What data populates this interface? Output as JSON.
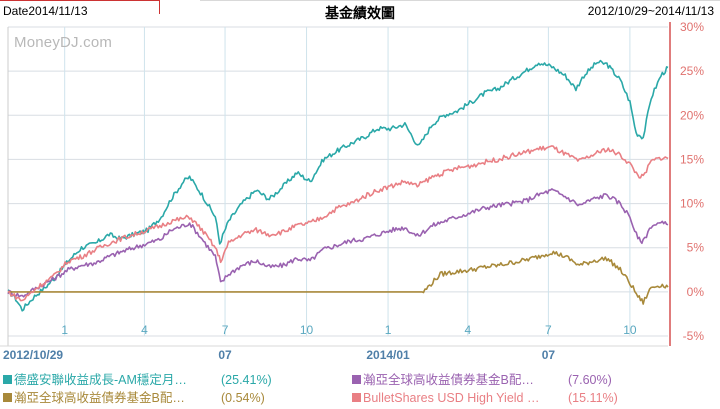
{
  "header": {
    "date_label": "Date2014/11/13",
    "title": "基金績效圖",
    "range": "2012/10/29~2014/11/13"
  },
  "watermark": "MoneyDJ.com",
  "legend": [
    {
      "label": "德盛安聯收益成長-AM穩定月…",
      "value": "(25.41%)",
      "color": "#2aa8a8"
    },
    {
      "label": "瀚亞全球高收益債券基金B配…",
      "value": "(7.60%)",
      "color": "#9a62b0"
    },
    {
      "label": "瀚亞全球高收益債券基金B配…",
      "value": "(0.54%)",
      "color": "#a8893a"
    },
    {
      "label": "BulletShares USD High Yield …",
      "value": "(15.11%)",
      "color": "#e97f84"
    }
  ],
  "chart_data": {
    "type": "line",
    "title": "基金績效圖",
    "xlabel": "",
    "ylabel": "",
    "ylim": [
      -5,
      30
    ],
    "yticks": [
      "-5%",
      "0%",
      "5%",
      "10%",
      "15%",
      "20%",
      "25%",
      "30%"
    ],
    "ytick_values": [
      -5,
      0,
      5,
      10,
      15,
      20,
      25,
      30
    ],
    "xlim": [
      "2012-10-29",
      "2014-11-13"
    ],
    "x_ticks_top": [
      {
        "label": "1",
        "date": "2013-01-01"
      },
      {
        "label": "4",
        "date": "2013-04-01"
      },
      {
        "label": "7",
        "date": "2013-07-01"
      },
      {
        "label": "10",
        "date": "2013-10-01"
      },
      {
        "label": "1",
        "date": "2014-01-01"
      },
      {
        "label": "4",
        "date": "2014-04-01"
      },
      {
        "label": "7",
        "date": "2014-07-01"
      },
      {
        "label": "10",
        "date": "2014-10-01"
      }
    ],
    "x_ticks_bottom": [
      {
        "label": "2012/10/29",
        "date": "2012-10-29"
      },
      {
        "label": "07",
        "date": "2013-07-01"
      },
      {
        "label": "2014/01",
        "date": "2014-01-01"
      },
      {
        "label": "07",
        "date": "2014-07-01"
      }
    ],
    "grid": true,
    "legend_position": "bottom",
    "series": [
      {
        "name": "德盛安聯收益成長-AM穩定月…",
        "color": "#2aa8a8",
        "points": [
          [
            "2012-10-29",
            0
          ],
          [
            "2012-11-05",
            -0.5
          ],
          [
            "2012-11-14",
            -2.0
          ],
          [
            "2012-11-28",
            -0.5
          ],
          [
            "2012-12-10",
            0.5
          ],
          [
            "2012-12-20",
            1.5
          ],
          [
            "2013-01-05",
            3.5
          ],
          [
            "2013-01-20",
            5.0
          ],
          [
            "2013-02-05",
            5.5
          ],
          [
            "2013-02-20",
            6.5
          ],
          [
            "2013-03-05",
            6.0
          ],
          [
            "2013-03-20",
            6.5
          ],
          [
            "2013-04-05",
            7.0
          ],
          [
            "2013-04-20",
            8.5
          ],
          [
            "2013-05-01",
            10.5
          ],
          [
            "2013-05-15",
            12.5
          ],
          [
            "2013-05-22",
            13.0
          ],
          [
            "2013-06-05",
            11.0
          ],
          [
            "2013-06-20",
            8.5
          ],
          [
            "2013-06-25",
            5.5
          ],
          [
            "2013-07-05",
            8.0
          ],
          [
            "2013-07-20",
            10.0
          ],
          [
            "2013-08-05",
            11.5
          ],
          [
            "2013-08-20",
            10.5
          ],
          [
            "2013-09-05",
            12.0
          ],
          [
            "2013-09-20",
            13.5
          ],
          [
            "2013-10-05",
            12.5
          ],
          [
            "2013-10-20",
            15.0
          ],
          [
            "2013-11-05",
            16.0
          ],
          [
            "2013-11-20",
            16.8
          ],
          [
            "2013-12-05",
            17.5
          ],
          [
            "2013-12-20",
            18.5
          ],
          [
            "2014-01-05",
            18.5
          ],
          [
            "2014-01-20",
            19.0
          ],
          [
            "2014-02-01",
            17.0
          ],
          [
            "2014-02-05",
            16.5
          ],
          [
            "2014-02-20",
            19.0
          ],
          [
            "2014-03-05",
            20.0
          ],
          [
            "2014-03-20",
            20.5
          ],
          [
            "2014-04-05",
            21.5
          ],
          [
            "2014-04-20",
            22.5
          ],
          [
            "2014-05-05",
            23.0
          ],
          [
            "2014-05-20",
            24.0
          ],
          [
            "2014-06-05",
            25.0
          ],
          [
            "2014-06-20",
            26.0
          ],
          [
            "2014-07-05",
            25.5
          ],
          [
            "2014-07-20",
            24.5
          ],
          [
            "2014-08-01",
            23.0
          ],
          [
            "2014-08-10",
            24.5
          ],
          [
            "2014-08-25",
            26.0
          ],
          [
            "2014-09-05",
            25.8
          ],
          [
            "2014-09-20",
            24.0
          ],
          [
            "2014-10-01",
            21.5
          ],
          [
            "2014-10-08",
            18.0
          ],
          [
            "2014-10-16",
            17.5
          ],
          [
            "2014-10-25",
            22.0
          ],
          [
            "2014-11-05",
            24.5
          ],
          [
            "2014-11-13",
            25.41
          ]
        ]
      },
      {
        "name": "瀚亞全球高收益債券基金B配…",
        "color": "#9a62b0",
        "points": [
          [
            "2012-10-29",
            0
          ],
          [
            "2012-11-14",
            -0.5
          ],
          [
            "2012-12-01",
            0.5
          ],
          [
            "2012-12-20",
            1.5
          ],
          [
            "2013-01-05",
            2.5
          ],
          [
            "2013-01-20",
            3.0
          ],
          [
            "2013-02-05",
            3.3
          ],
          [
            "2013-02-20",
            4.0
          ],
          [
            "2013-03-05",
            4.5
          ],
          [
            "2013-03-20",
            5.0
          ],
          [
            "2013-04-05",
            5.5
          ],
          [
            "2013-04-20",
            6.0
          ],
          [
            "2013-05-01",
            7.0
          ],
          [
            "2013-05-15",
            7.5
          ],
          [
            "2013-05-22",
            7.8
          ],
          [
            "2013-06-05",
            6.0
          ],
          [
            "2013-06-20",
            4.0
          ],
          [
            "2013-06-26",
            1.0
          ],
          [
            "2013-07-05",
            2.0
          ],
          [
            "2013-07-20",
            3.0
          ],
          [
            "2013-08-05",
            3.5
          ],
          [
            "2013-08-20",
            2.8
          ],
          [
            "2013-09-05",
            3.0
          ],
          [
            "2013-09-20",
            3.8
          ],
          [
            "2013-10-05",
            3.5
          ],
          [
            "2013-10-20",
            4.8
          ],
          [
            "2013-11-05",
            5.3
          ],
          [
            "2013-11-20",
            5.8
          ],
          [
            "2013-12-05",
            6.0
          ],
          [
            "2013-12-20",
            6.5
          ],
          [
            "2014-01-05",
            7.0
          ],
          [
            "2014-01-20",
            7.3
          ],
          [
            "2014-02-03",
            6.3
          ],
          [
            "2014-02-20",
            7.5
          ],
          [
            "2014-03-05",
            8.0
          ],
          [
            "2014-03-20",
            8.5
          ],
          [
            "2014-04-05",
            9.0
          ],
          [
            "2014-04-20",
            9.5
          ],
          [
            "2014-05-05",
            9.8
          ],
          [
            "2014-05-20",
            10.0
          ],
          [
            "2014-06-05",
            10.3
          ],
          [
            "2014-06-20",
            11.0
          ],
          [
            "2014-07-05",
            11.5
          ],
          [
            "2014-07-20",
            10.8
          ],
          [
            "2014-08-05",
            9.8
          ],
          [
            "2014-08-20",
            10.5
          ],
          [
            "2014-09-05",
            11.0
          ],
          [
            "2014-09-20",
            10.0
          ],
          [
            "2014-10-01",
            8.5
          ],
          [
            "2014-10-10",
            6.0
          ],
          [
            "2014-10-16",
            5.7
          ],
          [
            "2014-10-25",
            7.5
          ],
          [
            "2014-11-05",
            7.8
          ],
          [
            "2014-11-13",
            7.6
          ]
        ]
      },
      {
        "name": "瀚亞全球高收益債券基金B配…",
        "color": "#a8893a",
        "points": [
          [
            "2012-10-29",
            0
          ],
          [
            "2014-02-10",
            0
          ],
          [
            "2014-03-01",
            2.0
          ],
          [
            "2014-03-20",
            2.3
          ],
          [
            "2014-04-05",
            2.5
          ],
          [
            "2014-04-20",
            2.8
          ],
          [
            "2014-05-05",
            3.0
          ],
          [
            "2014-05-20",
            3.3
          ],
          [
            "2014-06-05",
            3.6
          ],
          [
            "2014-06-20",
            4.0
          ],
          [
            "2014-07-05",
            4.5
          ],
          [
            "2014-07-20",
            4.0
          ],
          [
            "2014-08-05",
            3.0
          ],
          [
            "2014-08-20",
            3.5
          ],
          [
            "2014-09-05",
            3.8
          ],
          [
            "2014-09-20",
            2.5
          ],
          [
            "2014-10-01",
            1.0
          ],
          [
            "2014-10-10",
            -0.5
          ],
          [
            "2014-10-16",
            -1.2
          ],
          [
            "2014-10-25",
            0.5
          ],
          [
            "2014-11-05",
            0.8
          ],
          [
            "2014-11-13",
            0.54
          ]
        ]
      },
      {
        "name": "BulletShares USD High Yield …",
        "color": "#e97f84",
        "points": [
          [
            "2012-10-29",
            0
          ],
          [
            "2012-11-14",
            -1.0
          ],
          [
            "2012-12-01",
            0.5
          ],
          [
            "2012-12-20",
            1.8
          ],
          [
            "2013-01-05",
            3.5
          ],
          [
            "2013-01-20",
            4.0
          ],
          [
            "2013-02-05",
            4.8
          ],
          [
            "2013-02-20",
            5.5
          ],
          [
            "2013-03-05",
            6.0
          ],
          [
            "2013-03-20",
            6.5
          ],
          [
            "2013-04-05",
            7.0
          ],
          [
            "2013-04-20",
            7.5
          ],
          [
            "2013-05-01",
            8.0
          ],
          [
            "2013-05-15",
            8.3
          ],
          [
            "2013-05-22",
            8.5
          ],
          [
            "2013-06-05",
            7.0
          ],
          [
            "2013-06-20",
            5.0
          ],
          [
            "2013-06-26",
            3.5
          ],
          [
            "2013-07-05",
            5.5
          ],
          [
            "2013-07-20",
            6.5
          ],
          [
            "2013-08-05",
            7.0
          ],
          [
            "2013-08-20",
            6.5
          ],
          [
            "2013-09-05",
            6.8
          ],
          [
            "2013-09-20",
            7.5
          ],
          [
            "2013-10-05",
            7.8
          ],
          [
            "2013-10-20",
            8.5
          ],
          [
            "2013-11-05",
            9.5
          ],
          [
            "2013-11-20",
            10.0
          ],
          [
            "2013-12-05",
            10.8
          ],
          [
            "2013-12-20",
            11.5
          ],
          [
            "2014-01-05",
            12.0
          ],
          [
            "2014-01-20",
            12.5
          ],
          [
            "2014-02-03",
            12.0
          ],
          [
            "2014-02-20",
            13.0
          ],
          [
            "2014-03-05",
            13.5
          ],
          [
            "2014-03-20",
            14.0
          ],
          [
            "2014-04-05",
            14.3
          ],
          [
            "2014-04-20",
            14.7
          ],
          [
            "2014-05-05",
            15.0
          ],
          [
            "2014-05-20",
            15.4
          ],
          [
            "2014-06-05",
            15.8
          ],
          [
            "2014-06-20",
            16.2
          ],
          [
            "2014-07-05",
            16.4
          ],
          [
            "2014-07-20",
            15.6
          ],
          [
            "2014-08-05",
            14.8
          ],
          [
            "2014-08-20",
            15.5
          ],
          [
            "2014-09-05",
            16.2
          ],
          [
            "2014-09-20",
            15.5
          ],
          [
            "2014-10-01",
            14.5
          ],
          [
            "2014-10-10",
            13.2
          ],
          [
            "2014-10-16",
            13.0
          ],
          [
            "2014-10-25",
            14.8
          ],
          [
            "2014-11-05",
            15.2
          ],
          [
            "2014-11-13",
            15.11
          ]
        ]
      }
    ]
  }
}
